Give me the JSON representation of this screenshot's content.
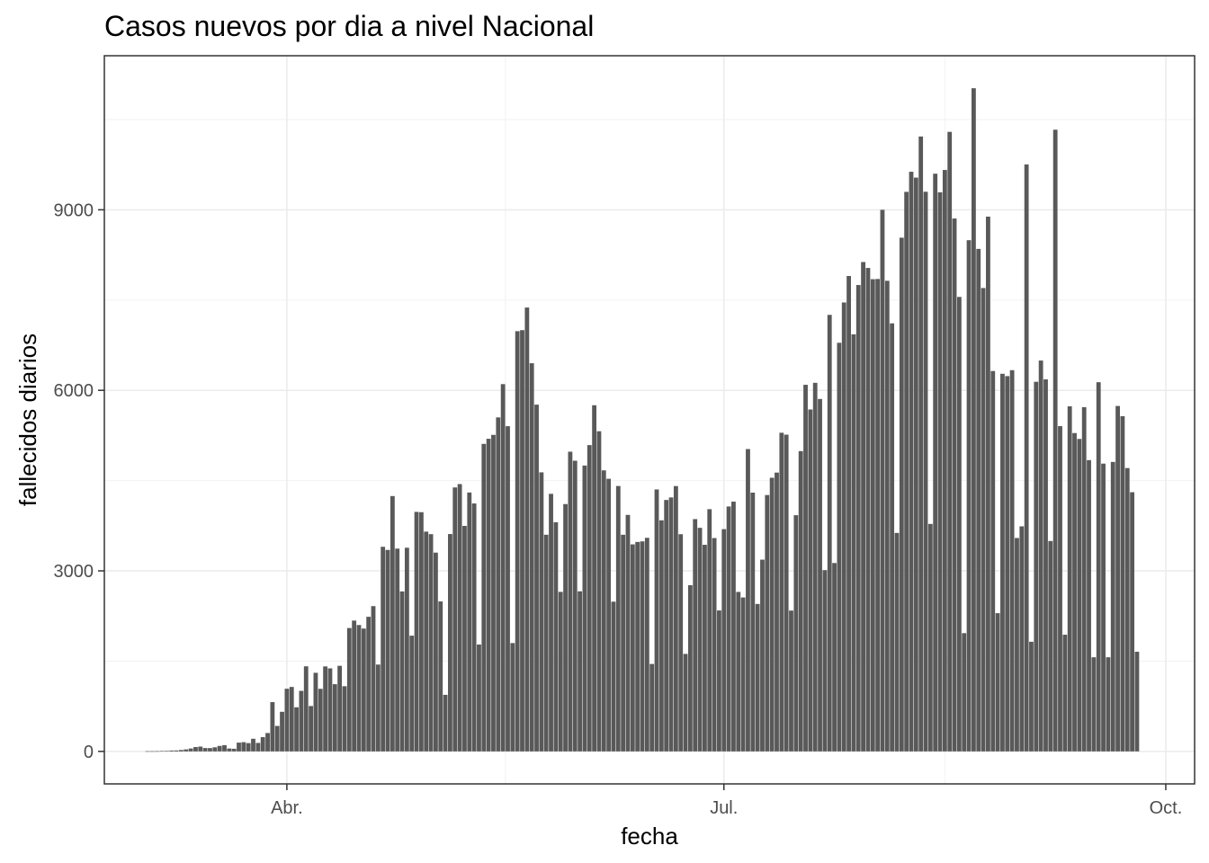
{
  "chart_data": {
    "type": "bar",
    "title": "Casos nuevos por dia a nivel Nacional",
    "xlabel": "fecha",
    "ylabel": "fallecidos diarios",
    "x_ticks": [
      {
        "label": "Abr.",
        "date": "2020-04-01"
      },
      {
        "label": "Jul.",
        "date": "2020-07-01"
      },
      {
        "label": "Oct.",
        "date": "2020-10-01"
      }
    ],
    "y_ticks": [
      0,
      3000,
      6000,
      9000
    ],
    "ylim": [
      -540,
      11560
    ],
    "xlim": [
      "2020-02-23",
      "2020-10-07"
    ],
    "grid": true,
    "bar_color": "#595959",
    "start_date": "2020-03-03",
    "values": [
      3,
      3,
      4,
      6,
      7,
      15,
      16,
      23,
      33,
      48,
      72,
      80,
      56,
      55,
      68,
      91,
      104,
      48,
      44,
      146,
      153,
      138,
      210,
      141,
      237,
      305,
      819,
      423,
      658,
      1041,
      1071,
      733,
      1006,
      1414,
      754,
      1306,
      1040,
      1412,
      1380,
      1117,
      1422,
      1083,
      2050,
      2174,
      2100,
      2041,
      2237,
      2414,
      1443,
      3400,
      3348,
      4243,
      3370,
      2658,
      3384,
      1923,
      3980,
      3975,
      3652,
      3610,
      3303,
      2492,
      940,
      3612,
      4386,
      4442,
      3747,
      4302,
      4120,
      1776,
      5110,
      5195,
      5260,
      5550,
      6103,
      5404,
      1800,
      6983,
      7000,
      7376,
      6450,
      5762,
      4637,
      3600,
      4280,
      3808,
      2651,
      4110,
      4980,
      4830,
      2660,
      4750,
      5090,
      5752,
      5320,
      4670,
      4530,
      2488,
      4410,
      3600,
      3930,
      3440,
      3480,
      3490,
      3549,
      1453,
      4353,
      3840,
      4178,
      4220,
      4409,
      3609,
      1620,
      2762,
      3860,
      3715,
      3433,
      4025,
      3545,
      2342,
      3693,
      4070,
      4150,
      2650,
      2558,
      5024,
      4300,
      2450,
      3186,
      4260,
      4547,
      4633,
      5295,
      5263,
      2340,
      3925,
      4990,
      6092,
      5682,
      6125,
      5856,
      3012,
      7254,
      3130,
      6790,
      7460,
      7900,
      6930,
      7750,
      8132,
      8034,
      7847,
      7850,
      9000,
      7820,
      7113,
      3630,
      8536,
      9298,
      9632,
      9535,
      10218,
      9300,
      3780,
      9600,
      9290,
      9662,
      10295,
      8855,
      7552,
      1965,
      8495,
      11020,
      8350,
      7700,
      8886,
      6321,
      2297,
      6275,
      6236,
      6335,
      3546,
      3740,
      9754,
      1822,
      6142,
      6495,
      6182,
      3496,
      10331,
      5405,
      1939,
      5734,
      5290,
      5192,
      5720,
      4840,
      1564,
      6135,
      4782,
      1564,
      4810,
      5740,
      5570,
      4708,
      4307,
      1656
    ]
  }
}
